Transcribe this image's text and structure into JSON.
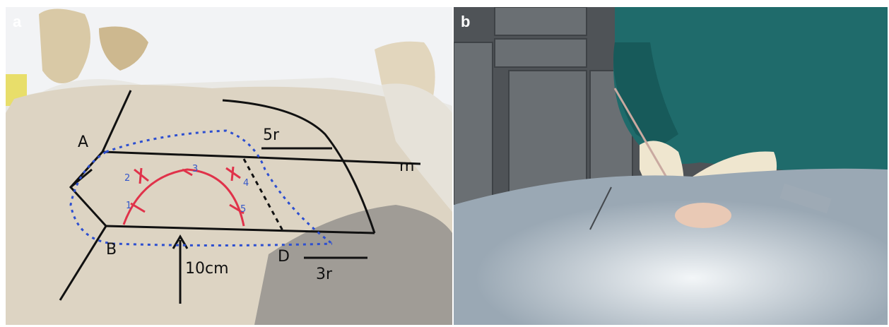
{
  "panels": [
    {
      "label": "a",
      "annotations": [
        "A",
        "B",
        "D",
        "m",
        "5r",
        "3r",
        "10cm",
        "1",
        "2",
        "3",
        "4",
        "5"
      ]
    },
    {
      "label": "b"
    }
  ]
}
